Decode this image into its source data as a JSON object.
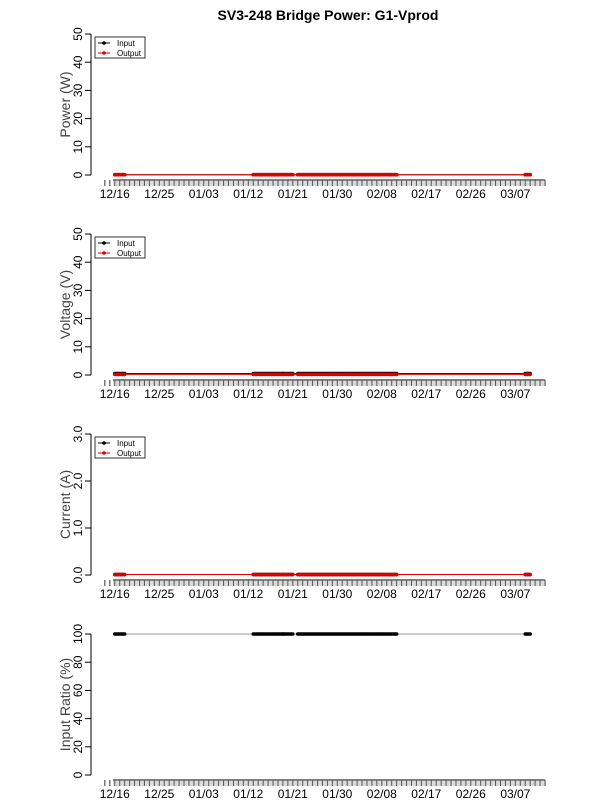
{
  "title": "SV3-248 Bridge Power: G1-Vprod",
  "chart_data": [
    {
      "id": "power",
      "type": "scatter",
      "ylabel": "Power (W)",
      "ylim": [
        0,
        50
      ],
      "yticks": [
        0,
        10,
        20,
        30,
        40,
        50
      ],
      "xticks": [
        "12/16",
        "12/25",
        "01/03",
        "01/12",
        "01/21",
        "01/30",
        "02/08",
        "02/17",
        "02/26",
        "03/07"
      ],
      "xlim": [
        "2016-12-12",
        "2017-03-13"
      ],
      "legend": {
        "position": "top-left",
        "entries": [
          {
            "label": "Input",
            "color": "#000000"
          },
          {
            "label": "Output",
            "color": "#dd0000"
          }
        ]
      },
      "series": [
        {
          "name": "Input",
          "color": "#000000",
          "value": 0.1
        },
        {
          "name": "Output",
          "color": "#dd0000",
          "value": 0.1
        }
      ]
    },
    {
      "id": "voltage",
      "type": "scatter",
      "ylabel": "Voltage (V)",
      "ylim": [
        0,
        50
      ],
      "yticks": [
        0,
        10,
        20,
        30,
        40,
        50
      ],
      "xticks": [
        "12/16",
        "12/25",
        "01/03",
        "01/12",
        "01/21",
        "01/30",
        "02/08",
        "02/17",
        "02/26",
        "03/07"
      ],
      "xlim": [
        "2016-12-12",
        "2017-03-13"
      ],
      "legend": {
        "position": "top-left",
        "entries": [
          {
            "label": "Input",
            "color": "#000000"
          },
          {
            "label": "Output",
            "color": "#dd0000"
          }
        ]
      },
      "series": [
        {
          "name": "Input",
          "color": "#000000",
          "value": 0.5
        },
        {
          "name": "Output",
          "color": "#dd0000",
          "value": 0.2
        }
      ]
    },
    {
      "id": "current",
      "type": "scatter",
      "ylabel": "Current (A)",
      "ylim": [
        0,
        3
      ],
      "yticks": [
        0.0,
        1.0,
        2.0,
        3.0
      ],
      "yticklabels": [
        "0.0",
        "1.0",
        "2.0",
        "3.0"
      ],
      "xticks": [
        "12/16",
        "12/25",
        "01/03",
        "01/12",
        "01/21",
        "01/30",
        "02/08",
        "02/17",
        "02/26",
        "03/07"
      ],
      "xlim": [
        "2016-12-12",
        "2017-03-13"
      ],
      "legend": {
        "position": "top-left",
        "entries": [
          {
            "label": "Input",
            "color": "#000000"
          },
          {
            "label": "Output",
            "color": "#dd0000"
          }
        ]
      },
      "series": [
        {
          "name": "Input",
          "color": "#000000",
          "value": 0.01
        },
        {
          "name": "Output",
          "color": "#dd0000",
          "value": 0.01
        }
      ]
    },
    {
      "id": "ratio",
      "type": "scatter",
      "ylabel": "Input Ratio (%)",
      "ylim": [
        0,
        100
      ],
      "yticks": [
        0,
        20,
        40,
        60,
        80,
        100
      ],
      "xticks": [
        "12/16",
        "12/25",
        "01/03",
        "01/12",
        "01/21",
        "01/30",
        "02/08",
        "02/17",
        "02/26",
        "03/07"
      ],
      "xlim": [
        "2016-12-12",
        "2017-03-13"
      ],
      "legend": null,
      "series": [
        {
          "name": "",
          "color": "#000000",
          "value": 100
        }
      ]
    }
  ],
  "sample_periods": [
    {
      "start": "2016-12-16",
      "end": "2016-12-18"
    },
    {
      "start": "2017-01-13",
      "end": "2017-01-19"
    },
    {
      "start": "2017-01-19",
      "end": "2017-01-21"
    },
    {
      "start": "2017-01-22",
      "end": "2017-02-11"
    },
    {
      "start": "2017-03-09",
      "end": "2017-03-10"
    }
  ]
}
